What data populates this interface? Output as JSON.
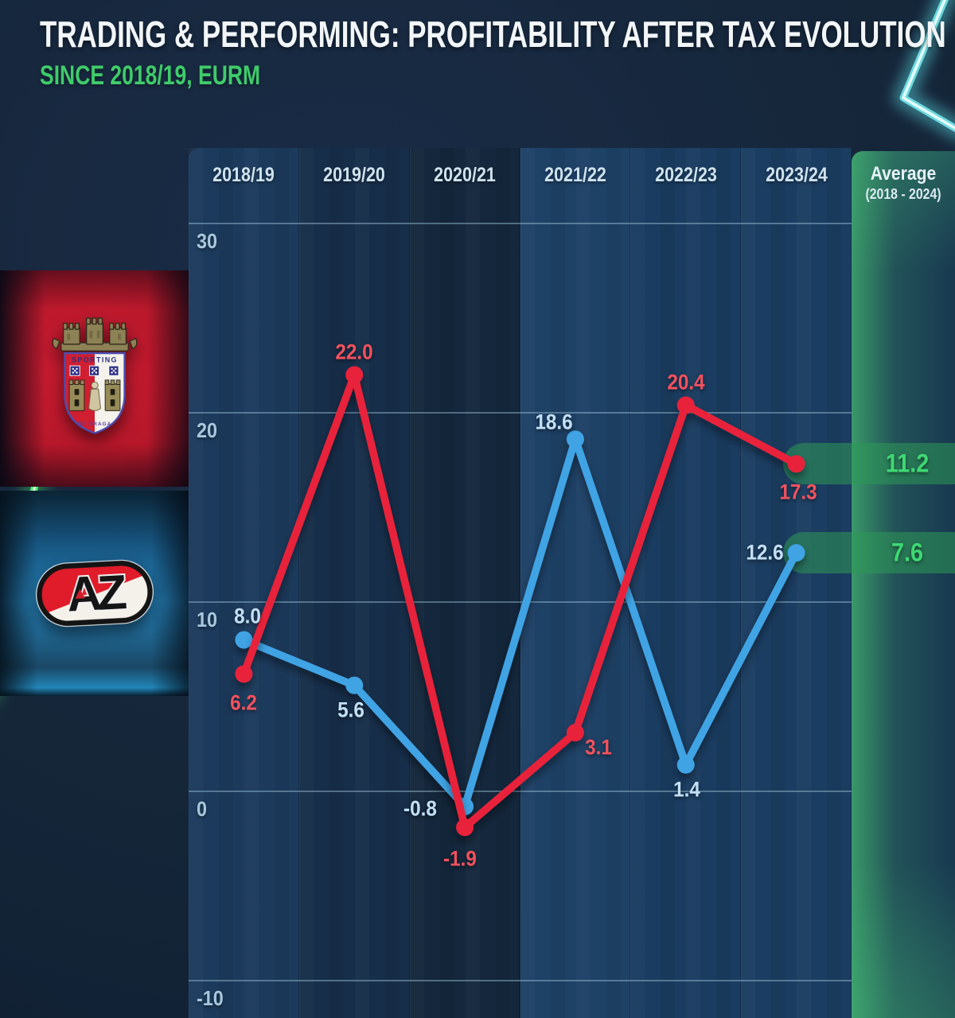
{
  "title": "TRADING & PERFORMING: PROFITABILITY AFTER TAX EVOLUTION",
  "subtitle": "SINCE 2018/19, EURM",
  "colors": {
    "accent_green": "#3fcb6a",
    "avg_value_green": "#3fd873",
    "braga_red": "#e8243a",
    "braga_label_red": "#f2525e",
    "az_blue": "#3fa3e4",
    "az_label_blue": "#c3e0f6",
    "grid": "rgba(176,214,232,0.40)",
    "tick_label": "#a9c8dc",
    "season_label": "#cfe3ee",
    "pill_green": "rgba(45,153,88,0.55)",
    "neon_green": "#55ec71",
    "neon_cyan": "#8deee9"
  },
  "logos": [
    {
      "name": "sc-braga-crest",
      "shield_text_top": "SPORTING",
      "shield_text_bottom": "DE BRAGA"
    },
    {
      "name": "az-alkmaar-logo",
      "letters": "AZ"
    }
  ],
  "chart_data": {
    "type": "line",
    "categories": [
      "2018/19",
      "2019/20",
      "2020/21",
      "2021/22",
      "2022/23",
      "2023/24"
    ],
    "series": [
      {
        "name": "SC Braga",
        "color": "#e8243a",
        "label_color": "#f2525e",
        "values": [
          6.2,
          22.0,
          -1.9,
          3.1,
          20.4,
          17.3
        ],
        "average": 11.2
      },
      {
        "name": "AZ Alkmaar",
        "color": "#3fa3e4",
        "label_color": "#c3e0f6",
        "values": [
          8.0,
          5.6,
          -0.8,
          18.6,
          1.4,
          12.6
        ],
        "average": 7.6
      }
    ],
    "ylabel": "EURM",
    "yticks": [
      30,
      20,
      10,
      0,
      -10
    ],
    "ylim": [
      -12,
      32
    ],
    "grid": true,
    "legend_position": "left-logos",
    "average_header": {
      "line1": "Average",
      "line2": "(2018 - 2024)"
    }
  }
}
